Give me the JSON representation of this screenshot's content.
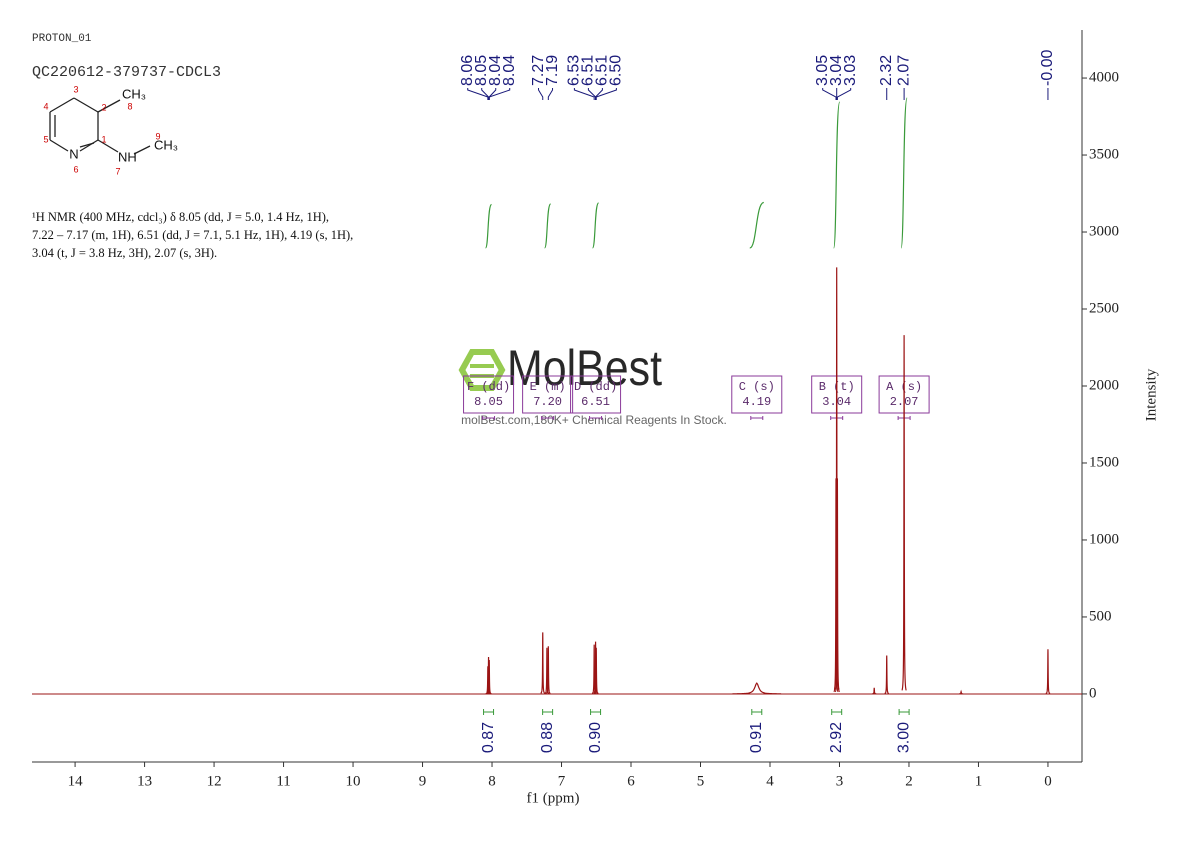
{
  "header": {
    "experiment": "PROTON_01",
    "sample": "QC220612-379737-CDCL3"
  },
  "structure": {
    "atom_symbols": [
      "CH₃",
      "N",
      "NH",
      "CH₃"
    ],
    "atom_numbers": [
      1,
      2,
      3,
      4,
      5,
      6,
      7,
      8,
      9
    ]
  },
  "description": [
    "¹H NMR (400 MHz, cdcl₃) δ 8.05 (dd, J = 5.0, 1.4 Hz, 1H),",
    "7.22 – 7.17 (m, 1H), 6.51 (dd, J = 7.1, 5.1 Hz, 1H), 4.19 (s, 1H),",
    "3.04 (t, J = 3.8 Hz, 3H), 2.07 (s, 3H)."
  ],
  "watermark": {
    "brand": "MolBest",
    "tagline": "molBest.com,180K+ Chemical Reagents In Stock."
  },
  "chart_data": {
    "type": "nmr",
    "xlabel": "f1 (ppm)",
    "ylabel": "Intensity",
    "xlim": [
      14.62,
      -0.49
    ],
    "xticks": [
      14,
      13,
      12,
      11,
      10,
      9,
      8,
      7,
      6,
      5,
      4,
      3,
      2,
      1,
      0
    ],
    "ylim": [
      -442,
      4312
    ],
    "yticks": [
      0,
      500,
      1000,
      1500,
      2000,
      2500,
      3000,
      3500,
      4000
    ],
    "peaks": {
      "color": "#9b1414",
      "x": [
        8.06,
        8.05,
        8.04,
        7.27,
        7.21,
        7.19,
        6.53,
        6.51,
        6.5,
        4.19,
        3.05,
        3.04,
        3.03,
        2.5,
        2.32,
        2.07,
        1.25,
        0.0
      ],
      "values": [
        180,
        240,
        220,
        400,
        300,
        310,
        320,
        340,
        300,
        70,
        1400,
        2770,
        1400,
        40,
        250,
        2330,
        15,
        290
      ]
    },
    "peak_labels": [
      8.06,
      8.05,
      8.04,
      8.04,
      7.27,
      7.19,
      6.53,
      6.51,
      6.51,
      {
        "value": 6.5,
        "label": "6.50"
      },
      3.05,
      3.04,
      3.03,
      2.32,
      2.07,
      {
        "value": 0,
        "label": "-0.00"
      }
    ],
    "multiplets": [
      {
        "title": "F (dd)",
        "shift": 8.05
      },
      {
        "title": "E (m)",
        "shift": {
          "value": 7.2,
          "label": "7.20"
        }
      },
      {
        "title": "D (dd)",
        "shift": 6.51
      },
      {
        "title": "C (s)",
        "shift": 4.19
      },
      {
        "title": "B (t)",
        "shift": 3.04
      },
      {
        "title": "A (s)",
        "shift": 2.07
      }
    ],
    "integrals": [
      {
        "position": 8.05,
        "value": 0.87
      },
      {
        "position": 7.2,
        "value": 0.88
      },
      {
        "position": 6.51,
        "value": {
          "value": 0.9,
          "label": "0.90"
        }
      },
      {
        "position": 4.19,
        "value": 0.91
      },
      {
        "position": 3.04,
        "value": 2.92
      },
      {
        "position": 2.07,
        "value": {
          "value": 3,
          "label": "3.00"
        }
      }
    ]
  }
}
